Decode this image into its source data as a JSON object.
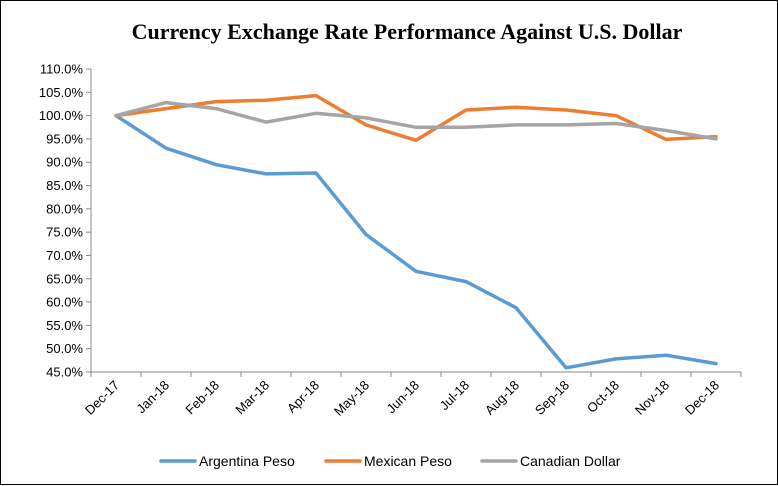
{
  "chart_data": {
    "type": "line",
    "title": "Currency Exchange Rate Performance Against U.S. Dollar",
    "xlabel": "",
    "ylabel": "",
    "categories": [
      "Dec-17",
      "Jan-18",
      "Feb-18",
      "Mar-18",
      "Apr-18",
      "May-18",
      "Jun-18",
      "Jul-18",
      "Aug-18",
      "Sep-18",
      "Oct-18",
      "Nov-18",
      "Dec-18"
    ],
    "ylim": [
      45,
      110
    ],
    "yticks": [
      45,
      50,
      55,
      60,
      65,
      70,
      75,
      80,
      85,
      90,
      95,
      100,
      105,
      110
    ],
    "ytick_labels": [
      "45.0%",
      "50.0%",
      "55.0%",
      "60.0%",
      "65.0%",
      "70.0%",
      "75.0%",
      "80.0%",
      "85.0%",
      "90.0%",
      "95.0%",
      "100.0%",
      "105.0%",
      "110.0%"
    ],
    "grid": false,
    "legend_position": "bottom",
    "series": [
      {
        "name": "Argentina Peso",
        "color": "#5B9BD5",
        "values": [
          100.0,
          93.0,
          89.5,
          87.5,
          87.7,
          74.5,
          66.6,
          64.4,
          58.8,
          45.9,
          47.8,
          48.6,
          46.8
        ]
      },
      {
        "name": "Mexican Peso",
        "color": "#ED7D31",
        "values": [
          100.0,
          101.5,
          103.0,
          103.3,
          104.3,
          98.0,
          94.7,
          101.2,
          101.8,
          101.2,
          100.0,
          94.9,
          95.5
        ]
      },
      {
        "name": "Canadian Dollar",
        "color": "#A5A5A5",
        "values": [
          100.0,
          102.8,
          101.5,
          98.6,
          100.5,
          99.5,
          97.5,
          97.5,
          98.0,
          98.0,
          98.3,
          96.8,
          95.0
        ]
      }
    ]
  }
}
